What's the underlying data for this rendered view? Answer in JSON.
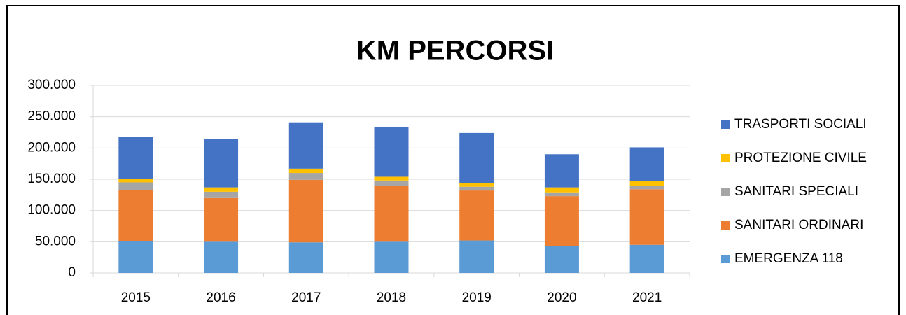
{
  "chart_data": {
    "type": "stacked_bar",
    "title": "KM PERCORSI",
    "categories": [
      "2015",
      "2016",
      "2017",
      "2018",
      "2019",
      "2020",
      "2021"
    ],
    "series": [
      {
        "name": "EMERGENZA 118",
        "color": "#5b9bd5",
        "values": [
          51000,
          50000,
          49000,
          50000,
          52000,
          43000,
          45000
        ]
      },
      {
        "name": "SANITARI ORDINARI",
        "color": "#ed7d31",
        "values": [
          82000,
          70000,
          100000,
          89000,
          80000,
          80000,
          89000
        ]
      },
      {
        "name": "SANITARI SPECIALI",
        "color": "#a5a5a5",
        "values": [
          12000,
          10000,
          11000,
          9000,
          6000,
          6000,
          5000
        ]
      },
      {
        "name": "PROTEZIONE CIVILE",
        "color": "#ffc000",
        "values": [
          6000,
          7000,
          7000,
          6000,
          6000,
          8000,
          8000
        ]
      },
      {
        "name": "TRASPORTI SOCIALI",
        "color": "#4472c4",
        "values": [
          67000,
          77000,
          74000,
          80000,
          80000,
          53000,
          54000
        ]
      }
    ],
    "ylim": [
      0,
      300000
    ],
    "yticks": [
      0,
      {
        "value": 50000,
        "label": "50.000"
      },
      {
        "value": 100000,
        "label": "100.000"
      },
      {
        "value": 150000,
        "label": "150.000"
      },
      {
        "value": 200000,
        "label": "200.000"
      },
      {
        "value": 250000,
        "label": "250.000"
      },
      {
        "value": 300000,
        "label": "300.000"
      }
    ],
    "grid": true,
    "legend": "right"
  }
}
